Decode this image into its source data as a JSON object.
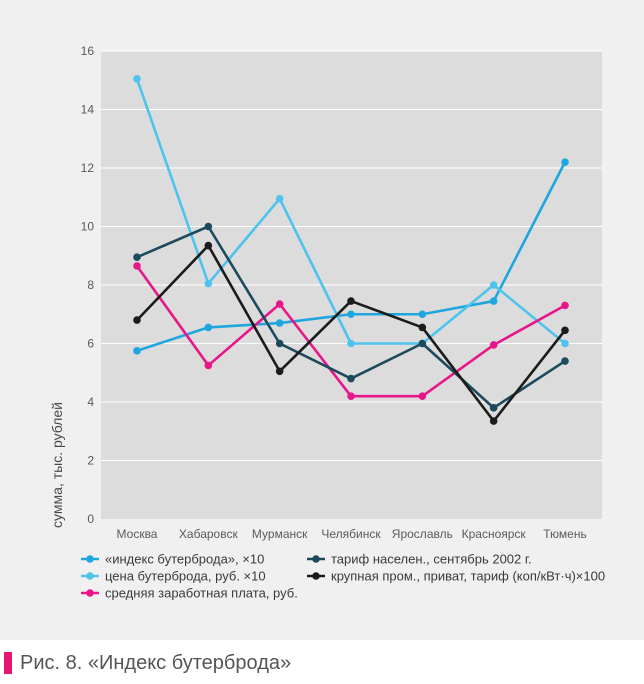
{
  "chart_data": {
    "type": "line",
    "title": "",
    "xlabel": "",
    "ylabel": "сумма, тыс. рублей",
    "ylim": [
      0,
      16
    ],
    "yticks": [
      0,
      2,
      4,
      6,
      8,
      10,
      12,
      14,
      16
    ],
    "grid": true,
    "legend_position": "bottom",
    "categories": [
      "Москва",
      "Хабаровск",
      "Мурманск",
      "Челябинск",
      "Ярославль",
      "Красноярск",
      "Тюмень"
    ],
    "series": [
      {
        "name": "«индекс бутерброда», ×10",
        "color": "#1fa6de",
        "values": [
          5.75,
          6.55,
          6.7,
          7.0,
          7.0,
          7.45,
          12.2
        ]
      },
      {
        "name": "цена бутерброда, руб. ×10",
        "color": "#4dc3ee",
        "values": [
          15.05,
          8.05,
          10.95,
          6.0,
          6.0,
          8.0,
          6.0
        ]
      },
      {
        "name": "средняя заработная плата, руб.",
        "color": "#e8168a",
        "values": [
          8.65,
          5.25,
          7.35,
          4.2,
          4.2,
          5.95,
          7.3
        ]
      },
      {
        "name": "тариф населен., сентябрь 2002 г.",
        "color": "#1d4a5c",
        "values": [
          8.95,
          10.0,
          6.0,
          4.8,
          6.0,
          3.8,
          5.4
        ]
      },
      {
        "name": "крупная пром., приват, тариф (коп/кВт·ч)×100",
        "color": "#1b1b1b",
        "values": [
          6.8,
          9.35,
          5.05,
          7.45,
          6.55,
          3.35,
          6.45
        ]
      }
    ]
  },
  "caption": {
    "text": "Рис. 8. «Индекс бутерброда»",
    "marker_color": "#e8146f"
  }
}
